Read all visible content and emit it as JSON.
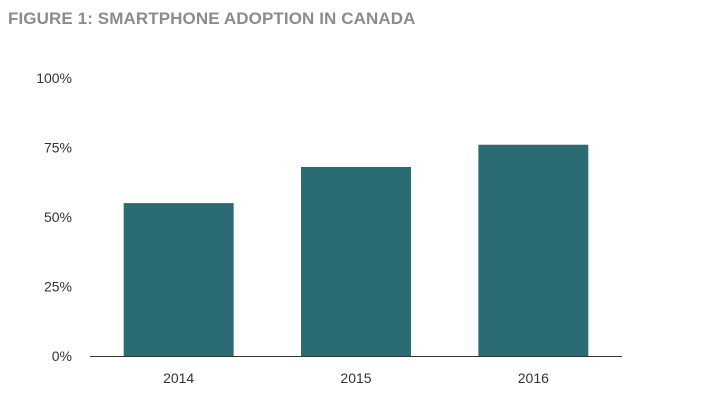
{
  "chart_data": {
    "type": "bar",
    "title": "FIGURE 1: SMARTPHONE ADOPTION IN CANADA",
    "categories": [
      "2014",
      "2015",
      "2016"
    ],
    "values": [
      55,
      68,
      76
    ],
    "unit": "%",
    "ylim": [
      0,
      100
    ],
    "yticks": [
      0,
      25,
      50,
      75,
      100
    ],
    "ytick_labels": [
      "0%",
      "25%",
      "50%",
      "75%",
      "100%"
    ],
    "xlabel": "",
    "ylabel": "",
    "grid": false,
    "legend": "none",
    "bar_color": "#2b6b73",
    "axis_color": "#333333"
  }
}
